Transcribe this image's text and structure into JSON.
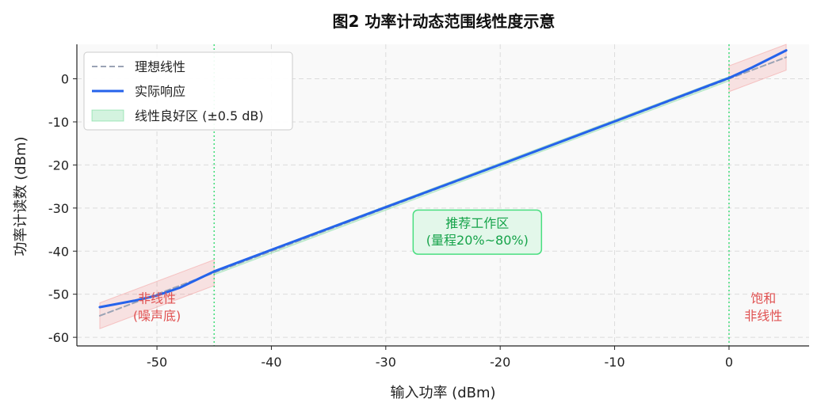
{
  "chart_data": {
    "type": "line",
    "title": "图2  功率计动态范围线性度示意",
    "xlabel": "输入功率 (dBm)",
    "ylabel": "功率计读数 (dBm)",
    "xlim": [
      -57,
      7
    ],
    "ylim": [
      -62,
      8
    ],
    "xticks": [
      -50,
      -40,
      -30,
      -20,
      -10,
      0
    ],
    "yticks": [
      0,
      -10,
      -20,
      -30,
      -40,
      -50,
      -60
    ],
    "grid": true,
    "legend_position": "top-left",
    "series": [
      {
        "name": "理想线性",
        "style": "dashed",
        "color": "#9aa3b5",
        "x": [
          -55,
          5
        ],
        "y": [
          -55,
          5
        ]
      },
      {
        "name": "实际响应",
        "style": "solid",
        "color": "#2563eb",
        "x": [
          -55,
          -52,
          -50,
          -48,
          -45,
          -40,
          -30,
          -20,
          -10,
          -2,
          0,
          2,
          5
        ],
        "y": [
          -53,
          -51.5,
          -50.3,
          -48.5,
          -44.7,
          -39.7,
          -29.8,
          -19.9,
          -9.9,
          -1.8,
          0.2,
          2.6,
          6.6
        ]
      }
    ],
    "bands": [
      {
        "name": "线性良好区 (±0.5 dB)",
        "color": "#22c55e",
        "x_range": [
          -45,
          0
        ],
        "half_width_db": 0.5
      },
      {
        "name": "",
        "color": "#ef4444",
        "x_range": [
          -55,
          -45
        ],
        "half_width_db": 3
      },
      {
        "name": "",
        "color": "#ef4444",
        "x_range": [
          0,
          5
        ],
        "half_width_db": 3
      }
    ],
    "vlines": [
      {
        "x": -45,
        "color": "#4ade80",
        "style": "dotted"
      },
      {
        "x": 0,
        "color": "#4ade80",
        "style": "dotted"
      }
    ],
    "annotations": [
      {
        "text": "推荐工作区",
        "x": -22,
        "y": -34.5,
        "color": "#16a34a",
        "boxed": true
      },
      {
        "text": "(量程20%~80%)",
        "x": -22,
        "y": -38.5,
        "color": "#16a34a",
        "boxed": true
      },
      {
        "text": "非线性",
        "x": -50,
        "y": -52,
        "color": "#e05252"
      },
      {
        "text": "(噪声底)",
        "x": -50,
        "y": -56,
        "color": "#e05252"
      },
      {
        "text": "饱和",
        "x": 3,
        "y": -52,
        "color": "#e05252"
      },
      {
        "text": "非线性",
        "x": 3,
        "y": -56,
        "color": "#e05252"
      }
    ]
  }
}
